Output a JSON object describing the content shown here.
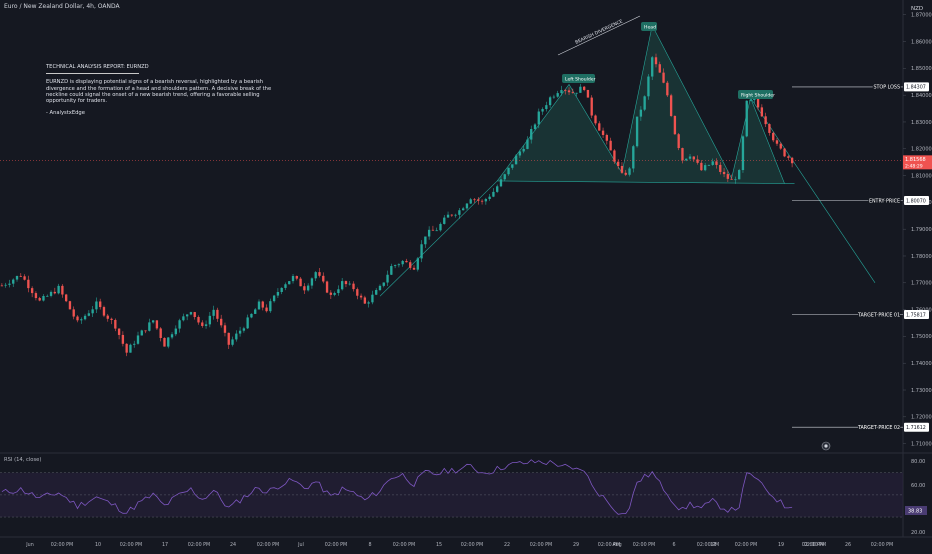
{
  "chart": {
    "symbol": "Euro / New Zealand Dollar, 4h, OANDA",
    "currency": "NZD"
  },
  "report": {
    "title": "TECHNICAL ANALYSIS REPORT: EURNZD",
    "body": "EURNZD is displaying potential signs of a bearish reversal, highlighted by a bearish divergence and the formation of a head and shoulders pattern. A decisive break of the neckline could signal the onset of a new bearish trend, offering a favorable selling opportunity for traders.",
    "signature": "- AnalystxEdge"
  },
  "annotations": {
    "bearish_divergence": "BEARISH DIVERGENCE",
    "left_shoulder": "Left Shoulder",
    "head": "Head",
    "right_shoulder": "Right Shoulder"
  },
  "levels": [
    {
      "label": "STOP LOSS",
      "value": "1.84307"
    },
    {
      "label": "ENTRY PRICE",
      "value": "1.80070"
    },
    {
      "label": "TARGET PRICE 01",
      "value": "1.75817"
    },
    {
      "label": "TARGET PRICE 02",
      "value": "1.71612"
    }
  ],
  "current_price": {
    "value": "1.81568",
    "countdown": "2:48:29"
  },
  "rsi": {
    "label": "RSI (14, close)",
    "current": "38.83",
    "ticks": [
      "80.00",
      "60.00",
      "40.00",
      "20.00"
    ]
  },
  "colors": {
    "background": "#151821",
    "up_candle": "#26a69a",
    "down_candle": "#ef5350",
    "pattern_fill": "#1d4b45",
    "pattern_line": "#26a69a",
    "rsi_line": "#7e57c2",
    "rsi_band": "#2a2340"
  },
  "chart_data": {
    "type": "candlestick",
    "title": "Euro / New Zealand Dollar, 4h, OANDA",
    "y_axis_unit": "NZD",
    "y_ticks": [
      1.87,
      1.86,
      1.85,
      1.84,
      1.83,
      1.82,
      1.81,
      1.8,
      1.79,
      1.78,
      1.77,
      1.76,
      1.75,
      1.74,
      1.73,
      1.72,
      1.71
    ],
    "ylim": [
      1.7065,
      1.8755
    ],
    "x_labels": [
      "Jun",
      "02:00 PM",
      "10",
      "02:00 PM",
      "17",
      "02:00 PM",
      "24",
      "02:00 PM",
      "Jul",
      "02:00 PM",
      "8",
      "02:00 PM",
      "15",
      "02:00 PM",
      "22",
      "02:00 PM",
      "29",
      "02:00 PM",
      "Aug",
      "02:00 PM",
      "6",
      "02:00 PM",
      "12",
      "02:00 PM",
      "19",
      "02:00 PM",
      "02:00 PM",
      "26",
      "02:00 PM"
    ],
    "close_path": [
      [
        0,
        1.769
      ],
      [
        5,
        1.773
      ],
      [
        10,
        1.763
      ],
      [
        15,
        1.768
      ],
      [
        20,
        1.755
      ],
      [
        25,
        1.762
      ],
      [
        30,
        1.754
      ],
      [
        33,
        1.744
      ],
      [
        36,
        1.75
      ],
      [
        40,
        1.756
      ],
      [
        43,
        1.747
      ],
      [
        46,
        1.754
      ],
      [
        50,
        1.76
      ],
      [
        53,
        1.753
      ],
      [
        56,
        1.76
      ],
      [
        60,
        1.747
      ],
      [
        64,
        1.754
      ],
      [
        68,
        1.762
      ],
      [
        70,
        1.76
      ],
      [
        74,
        1.769
      ],
      [
        77,
        1.772
      ],
      [
        80,
        1.768
      ],
      [
        83,
        1.774
      ],
      [
        87,
        1.765
      ],
      [
        90,
        1.77
      ],
      [
        93,
        1.768
      ],
      [
        96,
        1.762
      ],
      [
        100,
        1.768
      ],
      [
        103,
        1.776
      ],
      [
        106,
        1.778
      ],
      [
        109,
        1.776
      ],
      [
        112,
        1.788
      ],
      [
        115,
        1.79
      ],
      [
        118,
        1.795
      ],
      [
        121,
        1.797
      ],
      [
        124,
        1.802
      ],
      [
        127,
        1.8
      ],
      [
        130,
        1.804
      ],
      [
        133,
        1.81
      ],
      [
        136,
        1.817
      ],
      [
        139,
        1.823
      ],
      [
        142,
        1.833
      ],
      [
        145,
        1.839
      ],
      [
        148,
        1.843
      ],
      [
        151,
        1.841
      ],
      [
        154,
        1.843
      ],
      [
        156,
        1.833
      ],
      [
        159,
        1.825
      ],
      [
        162,
        1.816
      ],
      [
        164,
        1.81
      ],
      [
        166,
        1.812
      ],
      [
        168,
        1.831
      ],
      [
        170,
        1.839
      ],
      [
        172,
        1.854
      ],
      [
        174,
        1.848
      ],
      [
        176,
        1.84
      ],
      [
        178,
        1.826
      ],
      [
        180,
        1.816
      ],
      [
        182,
        1.818
      ],
      [
        185,
        1.812
      ],
      [
        188,
        1.815
      ],
      [
        191,
        1.81
      ],
      [
        193,
        1.808
      ],
      [
        195,
        1.811
      ],
      [
        197,
        1.837
      ],
      [
        199,
        1.838
      ],
      [
        201,
        1.833
      ],
      [
        203,
        1.827
      ],
      [
        205,
        1.821
      ],
      [
        207,
        1.818
      ],
      [
        209,
        1.8157
      ]
    ],
    "rsi_path": [
      [
        0,
        52
      ],
      [
        5,
        55
      ],
      [
        10,
        47
      ],
      [
        15,
        52
      ],
      [
        20,
        40
      ],
      [
        25,
        48
      ],
      [
        30,
        40
      ],
      [
        33,
        34
      ],
      [
        36,
        42
      ],
      [
        40,
        50
      ],
      [
        43,
        40
      ],
      [
        46,
        48
      ],
      [
        50,
        55
      ],
      [
        53,
        46
      ],
      [
        56,
        54
      ],
      [
        60,
        38
      ],
      [
        64,
        48
      ],
      [
        68,
        57
      ],
      [
        70,
        52
      ],
      [
        74,
        60
      ],
      [
        77,
        63
      ],
      [
        80,
        56
      ],
      [
        83,
        62
      ],
      [
        87,
        48
      ],
      [
        90,
        55
      ],
      [
        93,
        52
      ],
      [
        96,
        45
      ],
      [
        100,
        54
      ],
      [
        103,
        66
      ],
      [
        106,
        68
      ],
      [
        109,
        60
      ],
      [
        112,
        70
      ],
      [
        115,
        69
      ],
      [
        118,
        72
      ],
      [
        121,
        73
      ],
      [
        124,
        76
      ],
      [
        127,
        70
      ],
      [
        130,
        72
      ],
      [
        133,
        76
      ],
      [
        136,
        78
      ],
      [
        139,
        79
      ],
      [
        142,
        80
      ],
      [
        145,
        79
      ],
      [
        148,
        77
      ],
      [
        151,
        72
      ],
      [
        154,
        73
      ],
      [
        156,
        58
      ],
      [
        159,
        48
      ],
      [
        162,
        38
      ],
      [
        164,
        32
      ],
      [
        166,
        38
      ],
      [
        168,
        62
      ],
      [
        170,
        66
      ],
      [
        172,
        70
      ],
      [
        174,
        60
      ],
      [
        176,
        52
      ],
      [
        178,
        42
      ],
      [
        180,
        36
      ],
      [
        182,
        42
      ],
      [
        185,
        38
      ],
      [
        188,
        44
      ],
      [
        191,
        38
      ],
      [
        193,
        36
      ],
      [
        195,
        40
      ],
      [
        197,
        68
      ],
      [
        199,
        67
      ],
      [
        201,
        58
      ],
      [
        203,
        52
      ],
      [
        205,
        46
      ],
      [
        207,
        40
      ],
      [
        209,
        38.83
      ]
    ],
    "rsi_ylim": [
      12,
      86
    ],
    "head_and_shoulders": {
      "left_shoulder": 1.844,
      "head": 1.866,
      "right_shoulder": 1.839,
      "neckline": [
        1.808,
        1.807
      ],
      "projection_end": 1.77
    }
  }
}
